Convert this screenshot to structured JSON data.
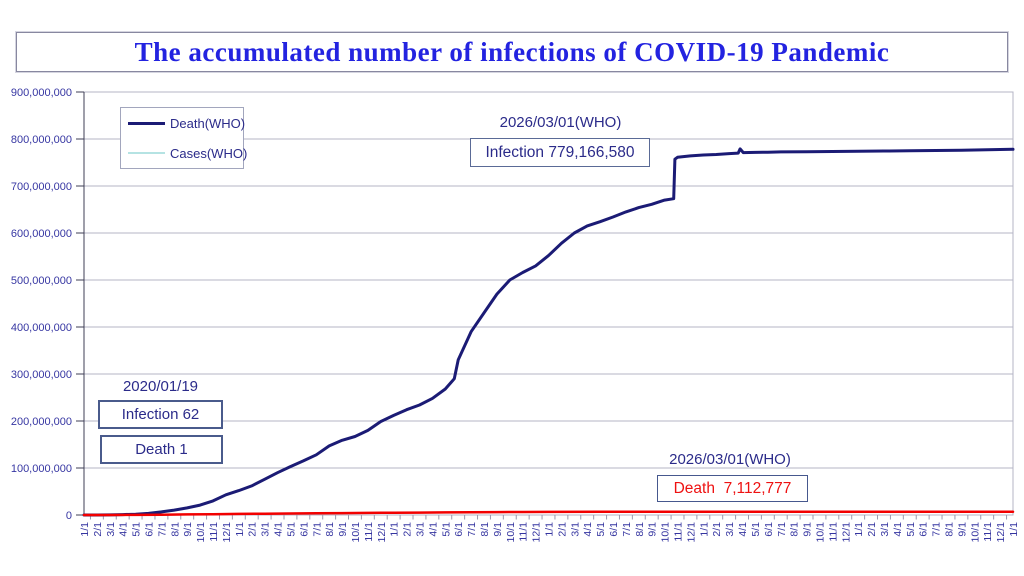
{
  "title": "The accumulated number of infections of COVID-19 Pandemic",
  "legend": {
    "items": [
      {
        "label": "Death(WHO)",
        "color": "#1b1b75"
      },
      {
        "label": "Cases(WHO)",
        "color": "#b5e3e3"
      }
    ]
  },
  "annotations": {
    "start": {
      "date": "2020/01/19",
      "infection": "Infection 62",
      "death": "Death 1"
    },
    "latest_infection": {
      "date": "2026/03/01(WHO)",
      "value": "Infection 779,166,580"
    },
    "latest_death": {
      "date": "2026/03/01(WHO)",
      "value": "Death  7,112,777"
    }
  },
  "chart_data": {
    "type": "line",
    "title": "The accumulated number of infections of COVID-19 Pandemic",
    "grid": "horizontal",
    "legend_position": "top-left-inside",
    "x_axis": {
      "unit": "month",
      "start": "2020-01",
      "end": "2026-01",
      "tick_labels": [
        "1/1",
        "2/1",
        "3/1",
        "4/1",
        "5/1",
        "6/1",
        "7/1",
        "8/1",
        "9/1",
        "10/1",
        "11/1",
        "12/1",
        "1/1",
        "2/1",
        "3/1",
        "4/1",
        "5/1",
        "6/1",
        "7/1",
        "8/1",
        "9/1",
        "10/1",
        "11/1",
        "12/1",
        "1/1",
        "2/1",
        "3/1",
        "4/1",
        "5/1",
        "6/1",
        "7/1",
        "8/1",
        "9/1",
        "10/1",
        "11/1",
        "12/1",
        "1/1",
        "2/1",
        "3/1",
        "4/1",
        "5/1",
        "6/1",
        "7/1",
        "8/1",
        "9/1",
        "10/1",
        "11/1",
        "12/1",
        "1/1",
        "2/1",
        "3/1",
        "4/1",
        "5/1",
        "6/1",
        "7/1",
        "8/1",
        "9/1",
        "10/1",
        "11/1",
        "12/1",
        "1/1",
        "2/1",
        "3/1",
        "4/1",
        "5/1",
        "6/1",
        "7/1",
        "8/1",
        "9/1",
        "10/1",
        "11/1",
        "12/1",
        "1/1"
      ]
    },
    "y_axis": {
      "min": 0,
      "max": 900000000,
      "tick_interval": 100000000,
      "tick_labels": [
        "0",
        "100,000,000",
        "200,000,000",
        "300,000,000",
        "400,000,000",
        "500,000,000",
        "600,000,000",
        "700,000,000",
        "800,000,000",
        "900,000,000"
      ]
    },
    "series": [
      {
        "name": "Accumulated infections (navy; shown in legend as Death(WHO))",
        "color": "#1b1b75",
        "width": 3,
        "final_value": 779166580,
        "points": [
          [
            0,
            0
          ],
          [
            1,
            0.1
          ],
          [
            2,
            0.3
          ],
          [
            3,
            0.9
          ],
          [
            4,
            1.8
          ],
          [
            5,
            3.5
          ],
          [
            6,
            6.5
          ],
          [
            7,
            10.5
          ],
          [
            8,
            15
          ],
          [
            9,
            21
          ],
          [
            10,
            30
          ],
          [
            11,
            43
          ],
          [
            12,
            52
          ],
          [
            13,
            62
          ],
          [
            14,
            76
          ],
          [
            15,
            90
          ],
          [
            16,
            103
          ],
          [
            17,
            115
          ],
          [
            18,
            128
          ],
          [
            19,
            147
          ],
          [
            20,
            159
          ],
          [
            21,
            167
          ],
          [
            22,
            180
          ],
          [
            23,
            199
          ],
          [
            24,
            212
          ],
          [
            25,
            224
          ],
          [
            26,
            234
          ],
          [
            27,
            248
          ],
          [
            28,
            268
          ],
          [
            28.7,
            290
          ],
          [
            29,
            330
          ],
          [
            30,
            390
          ],
          [
            31,
            430
          ],
          [
            32,
            470
          ],
          [
            33,
            500
          ],
          [
            34,
            516
          ],
          [
            35,
            530
          ],
          [
            36,
            552
          ],
          [
            37,
            578
          ],
          [
            38,
            600
          ],
          [
            39,
            615
          ],
          [
            40,
            624
          ],
          [
            41,
            634
          ],
          [
            42,
            645
          ],
          [
            43,
            654
          ],
          [
            44,
            661
          ],
          [
            45,
            670
          ],
          [
            45.7,
            673
          ],
          [
            45.8,
            757
          ],
          [
            46,
            761
          ],
          [
            47,
            764
          ],
          [
            48,
            766
          ],
          [
            49,
            767
          ],
          [
            50,
            769
          ],
          [
            50.7,
            770
          ],
          [
            50.85,
            779
          ],
          [
            51.1,
            771
          ],
          [
            52,
            771.5
          ],
          [
            53,
            772
          ],
          [
            54,
            772.5
          ],
          [
            56,
            773
          ],
          [
            58,
            773.5
          ],
          [
            60,
            774
          ],
          [
            62,
            774.5
          ],
          [
            64,
            775
          ],
          [
            66,
            775.5
          ],
          [
            68,
            776
          ],
          [
            70,
            777
          ],
          [
            72,
            778
          ]
        ],
        "points_unit": "millions"
      },
      {
        "name": "Accumulated deaths (red)",
        "color": "#f20000",
        "width": 2.5,
        "final_value": 7112777,
        "points": [
          [
            0,
            0
          ],
          [
            2,
            0.1
          ],
          [
            4,
            0.3
          ],
          [
            6,
            0.7
          ],
          [
            8,
            1.2
          ],
          [
            10,
            1.8
          ],
          [
            12,
            2.3
          ],
          [
            14,
            2.8
          ],
          [
            16,
            3.2
          ],
          [
            18,
            3.6
          ],
          [
            20,
            4
          ],
          [
            22,
            4.4
          ],
          [
            24,
            4.8
          ],
          [
            26,
            5.2
          ],
          [
            28,
            5.6
          ],
          [
            30,
            5.9
          ],
          [
            32,
            6.2
          ],
          [
            34,
            6.4
          ],
          [
            36,
            6.6
          ],
          [
            40,
            6.8
          ],
          [
            44,
            6.9
          ],
          [
            48,
            6.95
          ],
          [
            52,
            7
          ],
          [
            56,
            7
          ],
          [
            60,
            7.05
          ],
          [
            64,
            7.05
          ],
          [
            68,
            7.1
          ],
          [
            72,
            7.1
          ]
        ],
        "points_unit": "millions"
      }
    ]
  }
}
